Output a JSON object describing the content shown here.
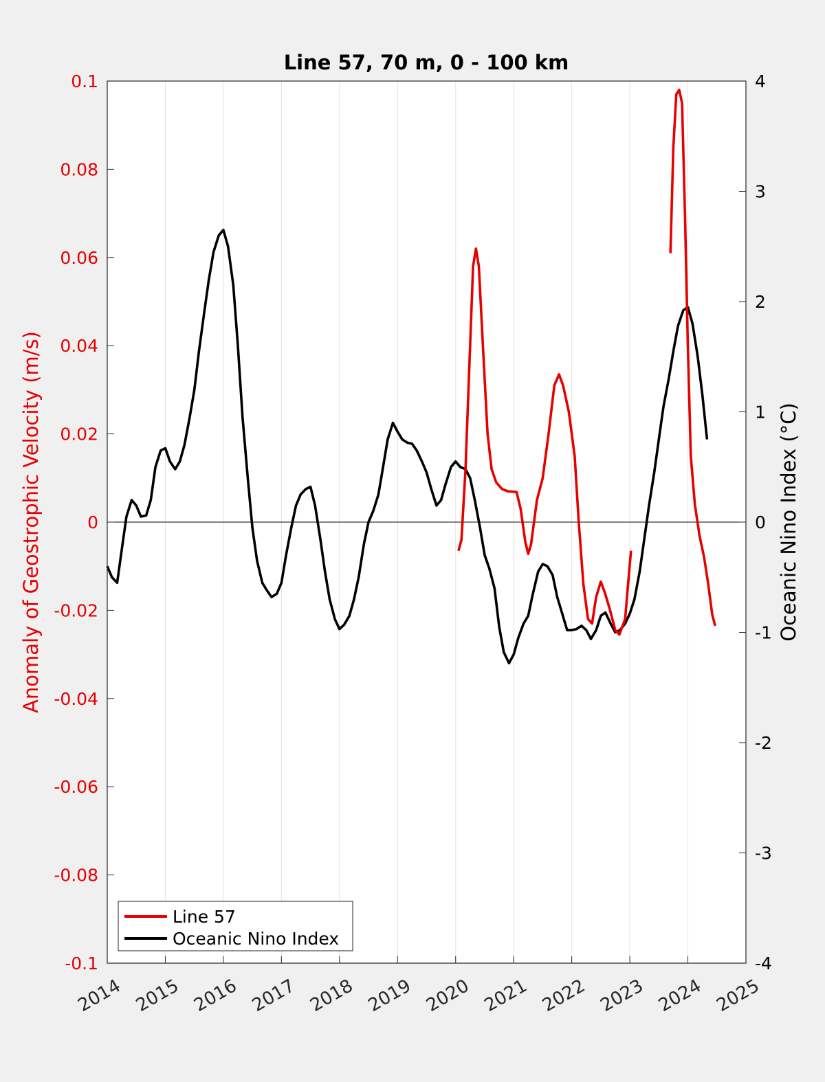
{
  "chart_data": {
    "type": "line",
    "title": "Line 57, 70 m, 0 - 100 km",
    "ylabel_left": "Anomaly of Geostrophic Velocity (m/s)",
    "ylabel_right": "Oceanic Nino Index (°C)",
    "xlim": [
      2014,
      2025
    ],
    "ylim_left": [
      -0.1,
      0.1
    ],
    "ylim_right": [
      -4,
      4
    ],
    "x_ticks": [
      "2014",
      "2015",
      "2016",
      "2017",
      "2018",
      "2019",
      "2020",
      "2021",
      "2022",
      "2023",
      "2024",
      "2025"
    ],
    "y_left_ticks": [
      "0.1",
      "0.08",
      "0.06",
      "0.04",
      "0.02",
      "0",
      "-0.02",
      "-0.04",
      "-0.06",
      "-0.08",
      "-0.1"
    ],
    "y_right_ticks": [
      "4",
      "3",
      "2",
      "1",
      "0",
      "-1",
      "-2",
      "-3",
      "-4"
    ],
    "grid": "vertical",
    "zero_line": 0,
    "legend_position": "bottom-left",
    "colors": {
      "line57": "#e60000",
      "oni": "#000000",
      "left_axis": "#e60000",
      "right_axis": "#000000"
    },
    "series": [
      {
        "name": "Line 57",
        "axis": "left",
        "segments": [
          [
            [
              2020.05,
              -0.0065
            ],
            [
              2020.1,
              -0.004
            ],
            [
              2020.17,
              0.012
            ],
            [
              2020.25,
              0.04
            ],
            [
              2020.3,
              0.058
            ],
            [
              2020.35,
              0.062
            ],
            [
              2020.4,
              0.058
            ],
            [
              2020.47,
              0.04
            ],
            [
              2020.55,
              0.02
            ],
            [
              2020.62,
              0.012
            ],
            [
              2020.7,
              0.009
            ],
            [
              2020.8,
              0.0075
            ],
            [
              2020.9,
              0.007
            ],
            [
              2021.05,
              0.0068
            ],
            [
              2021.12,
              0.003
            ],
            [
              2021.2,
              -0.0045
            ],
            [
              2021.25,
              -0.0072
            ],
            [
              2021.3,
              -0.005
            ],
            [
              2021.4,
              0.005
            ],
            [
              2021.5,
              0.01
            ],
            [
              2021.6,
              0.02
            ],
            [
              2021.7,
              0.031
            ],
            [
              2021.78,
              0.0335
            ],
            [
              2021.85,
              0.031
            ],
            [
              2021.95,
              0.025
            ],
            [
              2022.05,
              0.015
            ],
            [
              2022.12,
              0.0
            ],
            [
              2022.2,
              -0.014
            ],
            [
              2022.28,
              -0.022
            ],
            [
              2022.35,
              -0.023
            ],
            [
              2022.42,
              -0.017
            ],
            [
              2022.5,
              -0.0135
            ],
            [
              2022.57,
              -0.016
            ],
            [
              2022.65,
              -0.0195
            ],
            [
              2022.75,
              -0.0245
            ],
            [
              2022.82,
              -0.0255
            ],
            [
              2022.92,
              -0.022
            ],
            [
              2022.97,
              -0.014
            ],
            [
              2023.02,
              -0.0065
            ]
          ],
          [
            [
              2023.7,
              0.061
            ],
            [
              2023.75,
              0.085
            ],
            [
              2023.8,
              0.097
            ],
            [
              2023.85,
              0.098
            ],
            [
              2023.9,
              0.095
            ],
            [
              2023.95,
              0.07
            ],
            [
              2024.0,
              0.04
            ],
            [
              2024.05,
              0.015
            ],
            [
              2024.12,
              0.004
            ],
            [
              2024.2,
              -0.003
            ],
            [
              2024.28,
              -0.008
            ],
            [
              2024.35,
              -0.014
            ],
            [
              2024.42,
              -0.021
            ],
            [
              2024.47,
              -0.0235
            ]
          ]
        ]
      },
      {
        "name": "Oceanic Nino Index",
        "axis": "right",
        "segments": [
          [
            [
              2014.0,
              -0.4
            ],
            [
              2014.08,
              -0.5
            ],
            [
              2014.17,
              -0.55
            ],
            [
              2014.25,
              -0.25
            ],
            [
              2014.33,
              0.05
            ],
            [
              2014.42,
              0.2
            ],
            [
              2014.5,
              0.15
            ],
            [
              2014.58,
              0.05
            ],
            [
              2014.67,
              0.06
            ],
            [
              2014.75,
              0.2
            ],
            [
              2014.83,
              0.5
            ],
            [
              2014.92,
              0.65
            ],
            [
              2015.0,
              0.67
            ],
            [
              2015.08,
              0.55
            ],
            [
              2015.17,
              0.48
            ],
            [
              2015.25,
              0.55
            ],
            [
              2015.33,
              0.7
            ],
            [
              2015.42,
              0.95
            ],
            [
              2015.5,
              1.2
            ],
            [
              2015.58,
              1.55
            ],
            [
              2015.67,
              1.9
            ],
            [
              2015.75,
              2.2
            ],
            [
              2015.83,
              2.45
            ],
            [
              2015.92,
              2.6
            ],
            [
              2016.0,
              2.65
            ],
            [
              2016.08,
              2.5
            ],
            [
              2016.17,
              2.15
            ],
            [
              2016.25,
              1.6
            ],
            [
              2016.33,
              0.95
            ],
            [
              2016.42,
              0.4
            ],
            [
              2016.5,
              -0.05
            ],
            [
              2016.58,
              -0.35
            ],
            [
              2016.67,
              -0.55
            ],
            [
              2016.75,
              -0.62
            ],
            [
              2016.83,
              -0.68
            ],
            [
              2016.92,
              -0.65
            ],
            [
              2017.0,
              -0.55
            ],
            [
              2017.08,
              -0.3
            ],
            [
              2017.17,
              -0.05
            ],
            [
              2017.25,
              0.15
            ],
            [
              2017.33,
              0.25
            ],
            [
              2017.42,
              0.3
            ],
            [
              2017.5,
              0.32
            ],
            [
              2017.58,
              0.15
            ],
            [
              2017.67,
              -0.15
            ],
            [
              2017.75,
              -0.45
            ],
            [
              2017.83,
              -0.7
            ],
            [
              2017.92,
              -0.88
            ],
            [
              2018.0,
              -0.97
            ],
            [
              2018.08,
              -0.93
            ],
            [
              2018.17,
              -0.85
            ],
            [
              2018.25,
              -0.7
            ],
            [
              2018.33,
              -0.5
            ],
            [
              2018.42,
              -0.2
            ],
            [
              2018.5,
              0.0
            ],
            [
              2018.58,
              0.1
            ],
            [
              2018.67,
              0.25
            ],
            [
              2018.75,
              0.5
            ],
            [
              2018.83,
              0.75
            ],
            [
              2018.92,
              0.9
            ],
            [
              2019.0,
              0.82
            ],
            [
              2019.08,
              0.75
            ],
            [
              2019.17,
              0.72
            ],
            [
              2019.25,
              0.71
            ],
            [
              2019.33,
              0.65
            ],
            [
              2019.42,
              0.55
            ],
            [
              2019.5,
              0.45
            ],
            [
              2019.58,
              0.3
            ],
            [
              2019.67,
              0.15
            ],
            [
              2019.75,
              0.2
            ],
            [
              2019.83,
              0.35
            ],
            [
              2019.92,
              0.5
            ],
            [
              2020.0,
              0.55
            ],
            [
              2020.08,
              0.5
            ],
            [
              2020.17,
              0.48
            ],
            [
              2020.25,
              0.4
            ],
            [
              2020.33,
              0.2
            ],
            [
              2020.42,
              -0.05
            ],
            [
              2020.5,
              -0.3
            ],
            [
              2020.58,
              -0.42
            ],
            [
              2020.67,
              -0.6
            ],
            [
              2020.75,
              -0.95
            ],
            [
              2020.83,
              -1.18
            ],
            [
              2020.92,
              -1.28
            ],
            [
              2021.0,
              -1.2
            ],
            [
              2021.08,
              -1.05
            ],
            [
              2021.17,
              -0.92
            ],
            [
              2021.25,
              -0.85
            ],
            [
              2021.33,
              -0.65
            ],
            [
              2021.42,
              -0.45
            ],
            [
              2021.5,
              -0.38
            ],
            [
              2021.58,
              -0.4
            ],
            [
              2021.67,
              -0.48
            ],
            [
              2021.75,
              -0.68
            ],
            [
              2021.83,
              -0.82
            ],
            [
              2021.92,
              -0.98
            ],
            [
              2022.0,
              -0.98
            ],
            [
              2022.08,
              -0.97
            ],
            [
              2022.17,
              -0.94
            ],
            [
              2022.25,
              -0.98
            ],
            [
              2022.33,
              -1.06
            ],
            [
              2022.42,
              -0.98
            ],
            [
              2022.5,
              -0.85
            ],
            [
              2022.58,
              -0.82
            ],
            [
              2022.67,
              -0.92
            ],
            [
              2022.75,
              -1.0
            ],
            [
              2022.83,
              -0.98
            ],
            [
              2022.92,
              -0.92
            ],
            [
              2023.0,
              -0.83
            ],
            [
              2023.08,
              -0.7
            ],
            [
              2023.17,
              -0.45
            ],
            [
              2023.25,
              -0.15
            ],
            [
              2023.33,
              0.15
            ],
            [
              2023.42,
              0.45
            ],
            [
              2023.5,
              0.75
            ],
            [
              2023.58,
              1.05
            ],
            [
              2023.67,
              1.3
            ],
            [
              2023.75,
              1.55
            ],
            [
              2023.83,
              1.78
            ],
            [
              2023.92,
              1.92
            ],
            [
              2024.0,
              1.95
            ],
            [
              2024.08,
              1.8
            ],
            [
              2024.17,
              1.5
            ],
            [
              2024.25,
              1.15
            ],
            [
              2024.33,
              0.75
            ]
          ]
        ]
      }
    ]
  }
}
